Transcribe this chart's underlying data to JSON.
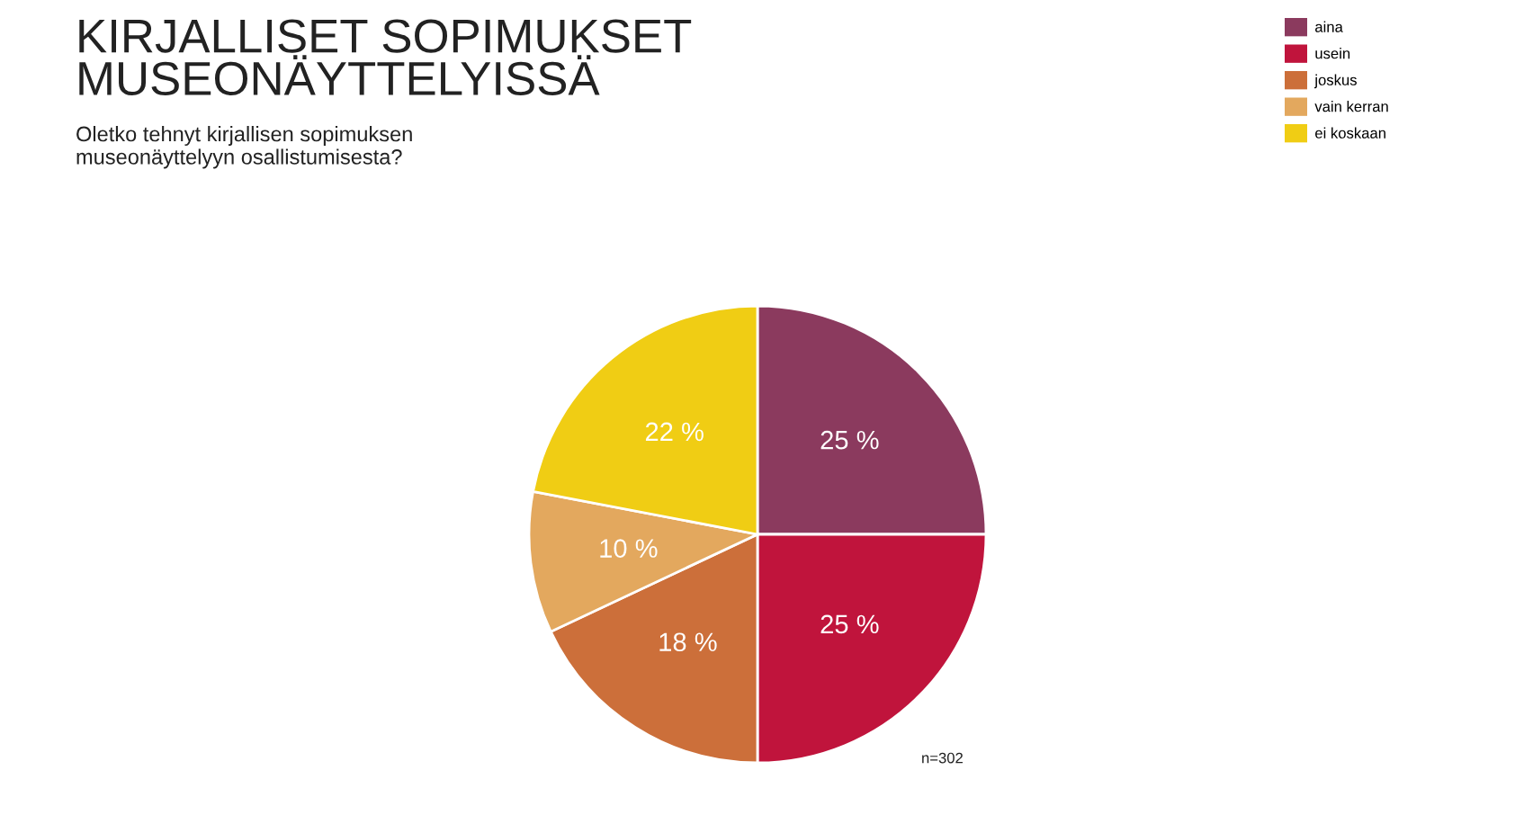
{
  "chart_data": {
    "type": "pie",
    "title": "KIRJALLISET SOPIMUKSET\nMUSEONÄYTTELYISSÄ",
    "subtitle": "Oletko tehnyt kirjallisen sopimuksen\nmuseonäyttelyyn osallistumisesta?",
    "categories": [
      "aina",
      "usein",
      "joskus",
      "vain kerran",
      "ei koskaan"
    ],
    "values": [
      25,
      25,
      18,
      10,
      22
    ],
    "colors": [
      "#8b3a5e",
      "#c0143c",
      "#cc6f3a",
      "#e3a85e",
      "#f0cd14"
    ],
    "value_labels": [
      "25 %",
      "25 %",
      "18 %",
      "10 %",
      "22 %"
    ],
    "annotations": [
      "n=302"
    ],
    "legend": "top right"
  }
}
